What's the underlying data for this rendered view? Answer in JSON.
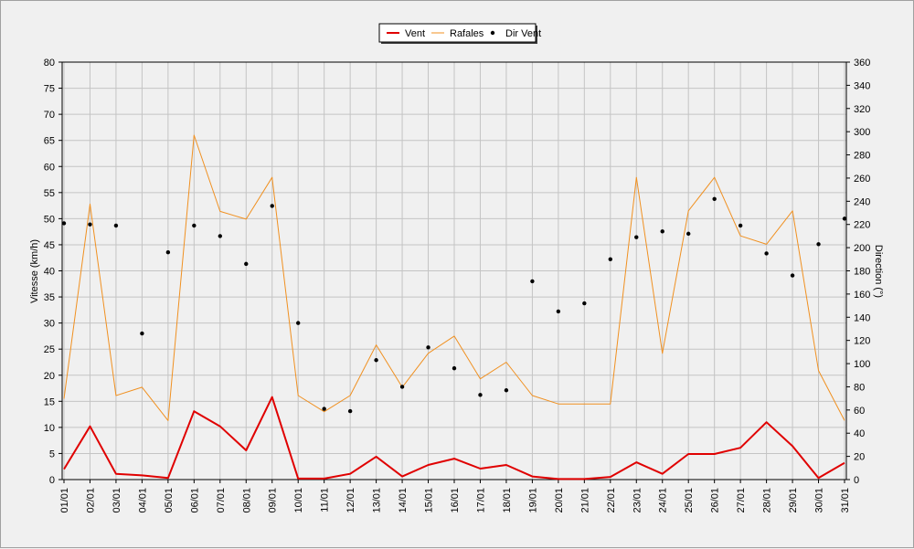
{
  "chart_data": {
    "type": "line",
    "legend": {
      "placement": "top-center",
      "items": [
        {
          "label": "Vent",
          "color": "#e00000",
          "style": "line-thick"
        },
        {
          "label": "Rafales",
          "color": "#f09020",
          "style": "line-thin"
        },
        {
          "label": "Dir Vent",
          "color": "#000000",
          "style": "dot"
        }
      ]
    },
    "xlabel": "",
    "ylabel_left": "Vitesse (km/h)",
    "ylabel_right": "Direction (°)",
    "ylim_left": [
      0,
      80
    ],
    "ylim_right": [
      0,
      360
    ],
    "yticks_left": [
      0,
      5,
      10,
      15,
      20,
      25,
      30,
      35,
      40,
      45,
      50,
      55,
      60,
      65,
      70,
      75,
      80
    ],
    "yticks_right": [
      0,
      20,
      40,
      60,
      80,
      100,
      120,
      140,
      160,
      180,
      200,
      220,
      240,
      260,
      280,
      300,
      320,
      340,
      360
    ],
    "grid": true,
    "categories": [
      "01/01",
      "02/01",
      "03/01",
      "04/01",
      "05/01",
      "06/01",
      "07/01",
      "08/01",
      "09/01",
      "10/01",
      "11/01",
      "12/01",
      "13/01",
      "14/01",
      "15/01",
      "16/01",
      "17/01",
      "18/01",
      "19/01",
      "20/01",
      "21/01",
      "22/01",
      "23/01",
      "24/01",
      "25/01",
      "26/01",
      "27/01",
      "28/01",
      "29/01",
      "30/01",
      "31/01"
    ],
    "series": [
      {
        "name": "Vent",
        "axis": "left",
        "color": "#e00000",
        "values": [
          2,
          10.2,
          1.1,
          0.8,
          0.3,
          13.1,
          10.2,
          5.6,
          15.8,
          0.2,
          0.2,
          1.1,
          4.4,
          0.6,
          2.8,
          4.0,
          2.1,
          2.8,
          0.6,
          0.1,
          0.1,
          0.5,
          3.3,
          1.1,
          4.9,
          4.9,
          6.1,
          11.0,
          6.4,
          0.3,
          3.2
        ]
      },
      {
        "name": "Rafales",
        "axis": "left",
        "color": "#f09020",
        "values": [
          15.5,
          52.8,
          16.1,
          17.7,
          11.3,
          66.0,
          51.4,
          49.9,
          57.9,
          16.1,
          13.0,
          16.1,
          25.8,
          17.7,
          24.2,
          27.5,
          19.3,
          22.5,
          16.1,
          14.5,
          14.5,
          14.5,
          57.9,
          24.2,
          51.5,
          57.9,
          46.7,
          45.1,
          51.5,
          20.9,
          11.3
        ]
      },
      {
        "name": "Dir Vent",
        "axis": "right",
        "color": "#000000",
        "marker": "dot",
        "values": [
          221,
          220,
          219,
          126,
          196,
          219,
          210,
          186,
          236,
          135,
          61,
          59,
          103,
          80,
          114,
          96,
          73,
          77,
          171,
          145,
          152,
          190,
          209,
          214,
          212,
          242,
          219,
          195,
          176,
          203,
          225
        ]
      }
    ]
  }
}
